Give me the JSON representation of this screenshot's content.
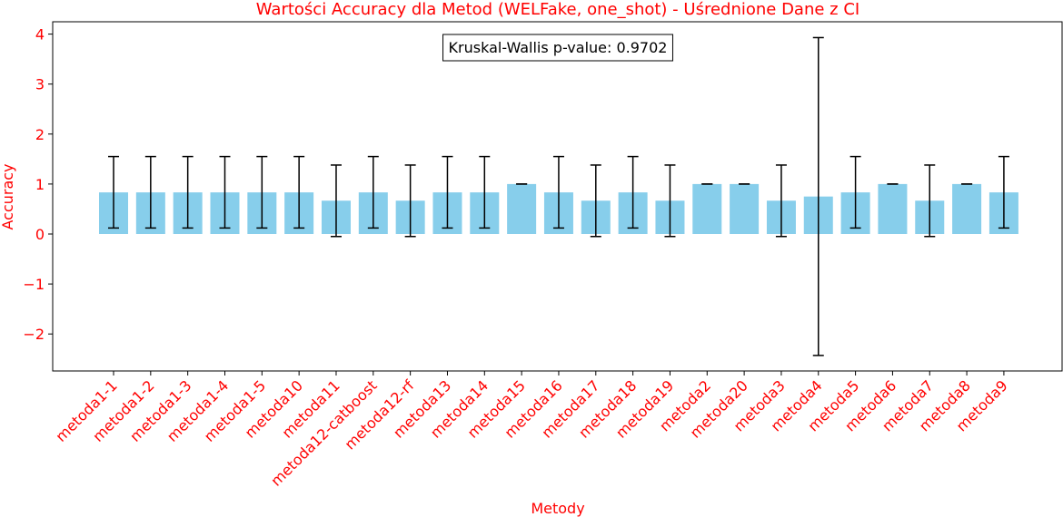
{
  "chart_data": {
    "type": "bar",
    "title": "Wartości Accuracy dla Metod (WELFake, one_shot) - Uśrednione Dane z CI",
    "xlabel": "Metody",
    "ylabel": "Accuracy",
    "ylim": [
      -2.7,
      4.25
    ],
    "yticks": [
      4,
      3,
      2,
      1,
      0,
      -1,
      -2
    ],
    "ytick_labels": [
      "4",
      "3",
      "2",
      "1",
      "0",
      "−1",
      "−2"
    ],
    "grid": false,
    "bar_color": "#87ceeb",
    "errorbar_color": "#000000",
    "text_color": "#ff0000",
    "categories": [
      "metoda1-1",
      "metoda1-2",
      "metoda1-3",
      "metoda1-4",
      "metoda1-5",
      "metoda10",
      "metoda11",
      "metoda12-catboost",
      "metoda12-rf",
      "metoda13",
      "metoda14",
      "metoda15",
      "metoda16",
      "metoda17",
      "metoda18",
      "metoda19",
      "metoda2",
      "metoda20",
      "metoda3",
      "metoda4",
      "metoda5",
      "metoda6",
      "metoda7",
      "metoda8",
      "metoda9"
    ],
    "values": [
      0.833,
      0.833,
      0.833,
      0.833,
      0.833,
      0.833,
      0.667,
      0.833,
      0.667,
      0.833,
      0.833,
      1.0,
      0.833,
      0.667,
      0.833,
      0.667,
      1.0,
      1.0,
      0.667,
      0.75,
      0.833,
      1.0,
      0.667,
      1.0,
      0.833
    ],
    "ci_lower": [
      0.12,
      0.12,
      0.12,
      0.12,
      0.12,
      0.12,
      -0.05,
      0.12,
      -0.05,
      0.12,
      0.12,
      1.0,
      0.12,
      -0.05,
      0.12,
      -0.05,
      1.0,
      1.0,
      -0.05,
      -2.43,
      0.12,
      1.0,
      -0.05,
      1.0,
      0.12
    ],
    "ci_upper": [
      1.55,
      1.55,
      1.55,
      1.55,
      1.55,
      1.55,
      1.38,
      1.55,
      1.38,
      1.55,
      1.55,
      1.0,
      1.55,
      1.38,
      1.55,
      1.38,
      1.0,
      1.0,
      1.38,
      3.93,
      1.55,
      1.0,
      1.38,
      1.0,
      1.55
    ],
    "annotation": "Kruskal-Wallis p-value: 0.9702",
    "annotation_position": "top-center"
  }
}
